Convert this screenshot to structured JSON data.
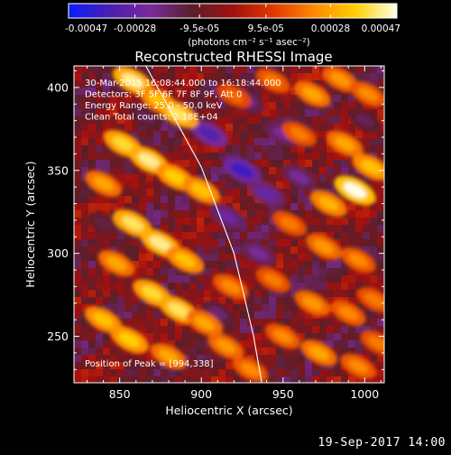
{
  "chart_data": {
    "type": "heatmap",
    "title": "Reconstructed RHESSI Image",
    "xlabel": "Heliocentric X (arcsec)",
    "ylabel": "Heliocentric Y (arcsec)",
    "xlim": [
      822,
      1012
    ],
    "ylim": [
      222,
      413
    ],
    "xticks": [
      850,
      900,
      950,
      1000
    ],
    "yticks": [
      250,
      300,
      350,
      400
    ],
    "colorbar": {
      "min": -0.00047,
      "max": 0.00047,
      "ticks": [
        -0.00047,
        -0.00028,
        -9.5e-05,
        9.5e-05,
        0.00028,
        0.00047
      ],
      "tick_labels": [
        "-0.00047",
        "-0.00028",
        "-9.5e-05",
        "9.5e-05",
        "0.00028",
        "0.00047"
      ],
      "units_label": "(photons cm⁻² s⁻¹ asec⁻²)",
      "colors": [
        "#0a1cff",
        "#4a1fb0",
        "#7a2a9a",
        "#5a1e2a",
        "#a01010",
        "#e03a00",
        "#ff8a00",
        "#ffd000",
        "#ffffe8"
      ]
    },
    "annotations": [
      "30-Mar-2015 16:08:44.000 to 16:18:44.000",
      "Detectors: 3F 5F 6F 7F 8F 9F, Att 0",
      "Energy Range: 25.0 - 50.0 keV",
      "Clean    Total counts: 2.18E+04"
    ],
    "peak_label": "Position of Peak = [994,338]",
    "peak": [
      994,
      338
    ],
    "limb": [
      [
        866,
        413
      ],
      [
        900,
        352
      ],
      [
        920,
        300
      ],
      [
        932,
        250
      ],
      [
        937,
        222
      ]
    ],
    "features": [
      {
        "x": 858,
        "y": 404,
        "v": 0.9
      },
      {
        "x": 874,
        "y": 392,
        "v": 0.7
      },
      {
        "x": 886,
        "y": 384,
        "v": 0.85
      },
      {
        "x": 852,
        "y": 366,
        "v": 0.8
      },
      {
        "x": 868,
        "y": 356,
        "v": 0.9
      },
      {
        "x": 884,
        "y": 346,
        "v": 0.75
      },
      {
        "x": 840,
        "y": 342,
        "v": 0.6
      },
      {
        "x": 900,
        "y": 338,
        "v": 0.7
      },
      {
        "x": 858,
        "y": 318,
        "v": 0.85
      },
      {
        "x": 875,
        "y": 306,
        "v": 0.9
      },
      {
        "x": 890,
        "y": 296,
        "v": 0.7
      },
      {
        "x": 848,
        "y": 294,
        "v": 0.6
      },
      {
        "x": 870,
        "y": 276,
        "v": 0.8
      },
      {
        "x": 886,
        "y": 266,
        "v": 0.85
      },
      {
        "x": 902,
        "y": 258,
        "v": 0.6
      },
      {
        "x": 840,
        "y": 260,
        "v": 0.7
      },
      {
        "x": 856,
        "y": 248,
        "v": 0.75
      },
      {
        "x": 880,
        "y": 238,
        "v": 0.6
      },
      {
        "x": 915,
        "y": 244,
        "v": 0.55
      },
      {
        "x": 930,
        "y": 230,
        "v": 0.5
      },
      {
        "x": 920,
        "y": 395,
        "v": 0.4
      },
      {
        "x": 944,
        "y": 404,
        "v": 0.45
      },
      {
        "x": 968,
        "y": 396,
        "v": 0.6
      },
      {
        "x": 985,
        "y": 405,
        "v": 0.55
      },
      {
        "x": 1002,
        "y": 396,
        "v": 0.5
      },
      {
        "x": 960,
        "y": 372,
        "v": 0.45
      },
      {
        "x": 988,
        "y": 366,
        "v": 0.6
      },
      {
        "x": 994,
        "y": 338,
        "v": 1.0
      },
      {
        "x": 1004,
        "y": 352,
        "v": 0.7
      },
      {
        "x": 978,
        "y": 330,
        "v": 0.65
      },
      {
        "x": 954,
        "y": 318,
        "v": 0.45
      },
      {
        "x": 975,
        "y": 304,
        "v": 0.55
      },
      {
        "x": 996,
        "y": 296,
        "v": 0.5
      },
      {
        "x": 944,
        "y": 284,
        "v": 0.45
      },
      {
        "x": 968,
        "y": 270,
        "v": 0.55
      },
      {
        "x": 990,
        "y": 264,
        "v": 0.5
      },
      {
        "x": 1006,
        "y": 272,
        "v": 0.45
      },
      {
        "x": 950,
        "y": 250,
        "v": 0.5
      },
      {
        "x": 972,
        "y": 240,
        "v": 0.6
      },
      {
        "x": 996,
        "y": 232,
        "v": 0.5
      },
      {
        "x": 1008,
        "y": 246,
        "v": 0.45
      },
      {
        "x": 918,
        "y": 280,
        "v": 0.5
      }
    ],
    "negatives": [
      {
        "x": 905,
        "y": 372,
        "v": -0.7
      },
      {
        "x": 925,
        "y": 350,
        "v": -0.8
      },
      {
        "x": 940,
        "y": 336,
        "v": -0.6
      },
      {
        "x": 916,
        "y": 322,
        "v": -0.55
      },
      {
        "x": 950,
        "y": 372,
        "v": -0.5
      },
      {
        "x": 928,
        "y": 392,
        "v": -0.45
      },
      {
        "x": 866,
        "y": 382,
        "v": -0.35
      },
      {
        "x": 910,
        "y": 264,
        "v": -0.4
      },
      {
        "x": 960,
        "y": 346,
        "v": -0.5
      },
      {
        "x": 1000,
        "y": 380,
        "v": -0.35
      },
      {
        "x": 840,
        "y": 318,
        "v": -0.3
      },
      {
        "x": 935,
        "y": 300,
        "v": -0.5
      }
    ]
  },
  "footer": {
    "timestamp": "19-Sep-2017 14:00"
  }
}
